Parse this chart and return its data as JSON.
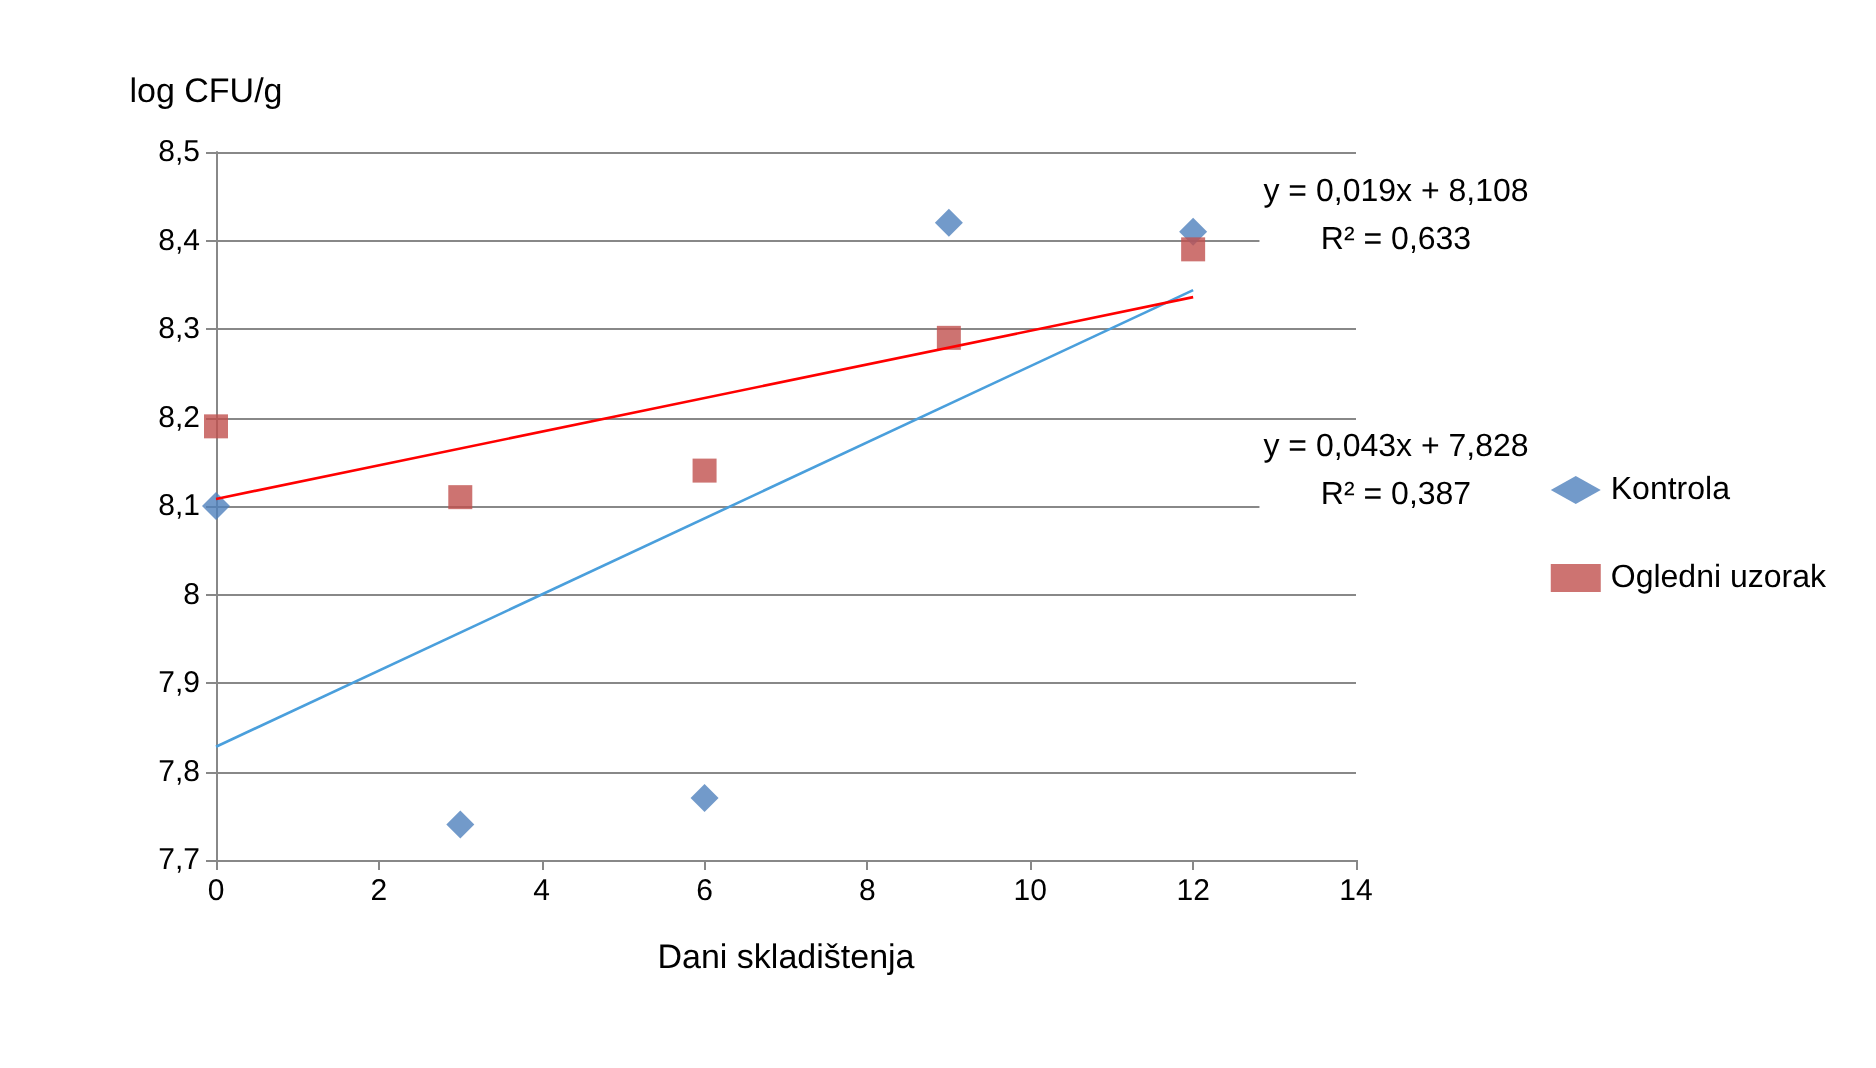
{
  "chart_data": {
    "type": "scatter",
    "ylabel": "log CFU/g",
    "xlabel": "Dani skladištenja",
    "xlim": [
      0,
      14
    ],
    "xticks": [
      0,
      2,
      4,
      6,
      8,
      10,
      12,
      14
    ],
    "ylim": [
      7.7,
      8.5
    ],
    "yticks": [
      {
        "value": 7.7,
        "label": "7,7"
      },
      {
        "value": 7.8,
        "label": "7,8"
      },
      {
        "value": 7.9,
        "label": "7,9"
      },
      {
        "value": 8,
        "label": "8"
      },
      {
        "value": 8.1,
        "label": "8,1"
      },
      {
        "value": 8.2,
        "label": "8,2"
      },
      {
        "value": 8.3,
        "label": "8,3"
      },
      {
        "value": 8.4,
        "label": "8,4"
      },
      {
        "value": 8.5,
        "label": "8,5"
      }
    ],
    "grid": "y",
    "legend": "right",
    "series": [
      {
        "name": "Kontrola",
        "color": "#4f81bd",
        "marker": "diamond",
        "x": [
          0,
          3,
          6,
          9,
          12
        ],
        "values": [
          8.1,
          7.74,
          7.77,
          8.42,
          8.41
        ]
      },
      {
        "name": "Ogledni uzorak",
        "color": "#c0504d",
        "marker": "square",
        "x": [
          0,
          3,
          6,
          9,
          12
        ],
        "values": [
          8.19,
          8.11,
          8.14,
          8.29,
          8.39
        ]
      },
      {
        "type": "line",
        "color": "#4a9fdc",
        "marker": "none",
        "x": [
          0,
          12
        ],
        "values": [
          7.828,
          8.344
        ]
      },
      {
        "type": "line",
        "color": "#ff0000",
        "marker": "none",
        "x": [
          0,
          12
        ],
        "values": [
          8.108,
          8.336
        ]
      }
    ],
    "annotations": [
      "y = 0,019x + 8,108\nR² = 0,633",
      "y = 0,043x + 7,828\nR² = 0,387"
    ]
  }
}
